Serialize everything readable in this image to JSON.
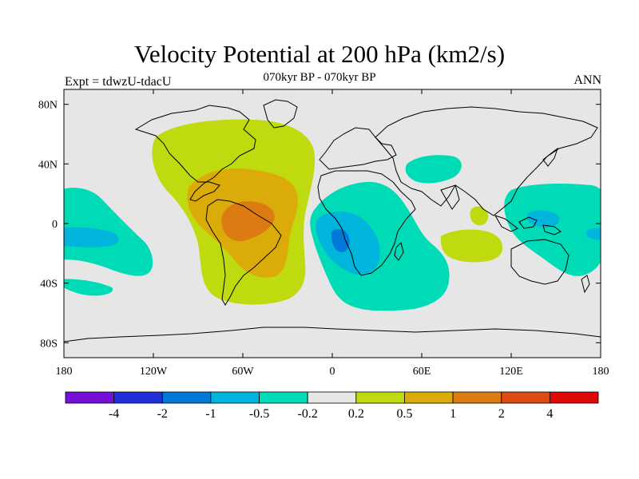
{
  "header": {
    "title": "Velocity Potential at 200 hPa (km2/s)",
    "subtitle": "070kyr BP - 070kyr BP",
    "experiment": "Expt = tdwzU-tdacU",
    "season": "ANN"
  },
  "map": {
    "projection": "cylindrical-equidistant",
    "lon_range": [
      -180,
      180
    ],
    "lat_range": [
      -90,
      90
    ],
    "x_tick_labels": [
      "180",
      "120W",
      "60W",
      "0",
      "60E",
      "120E",
      "180"
    ],
    "y_tick_labels": [
      "80N",
      "40N",
      "0",
      "40S",
      "80S"
    ],
    "colors": {
      "neutral": "#e6e6e6",
      "pos_0_2": "#bfdb0f",
      "pos_0_5": "#dbab09",
      "pos_1": "#db7b12",
      "neg_0_2": "#00dbb7",
      "neg_0_5": "#00b5dc",
      "neg_1": "#0079d9"
    }
  },
  "colorbar": {
    "colors": [
      "#7510d9",
      "#2130d8",
      "#0079d9",
      "#00b5dc",
      "#00dbb7",
      "#e6e6e6",
      "#bfdb0f",
      "#dbab09",
      "#db7b12",
      "#db4b12",
      "#e00707"
    ],
    "labels": [
      "-4",
      "-2",
      "-1",
      "-0.5",
      "-0.2",
      "0.2",
      "0.5",
      "1",
      "2",
      "4"
    ]
  }
}
